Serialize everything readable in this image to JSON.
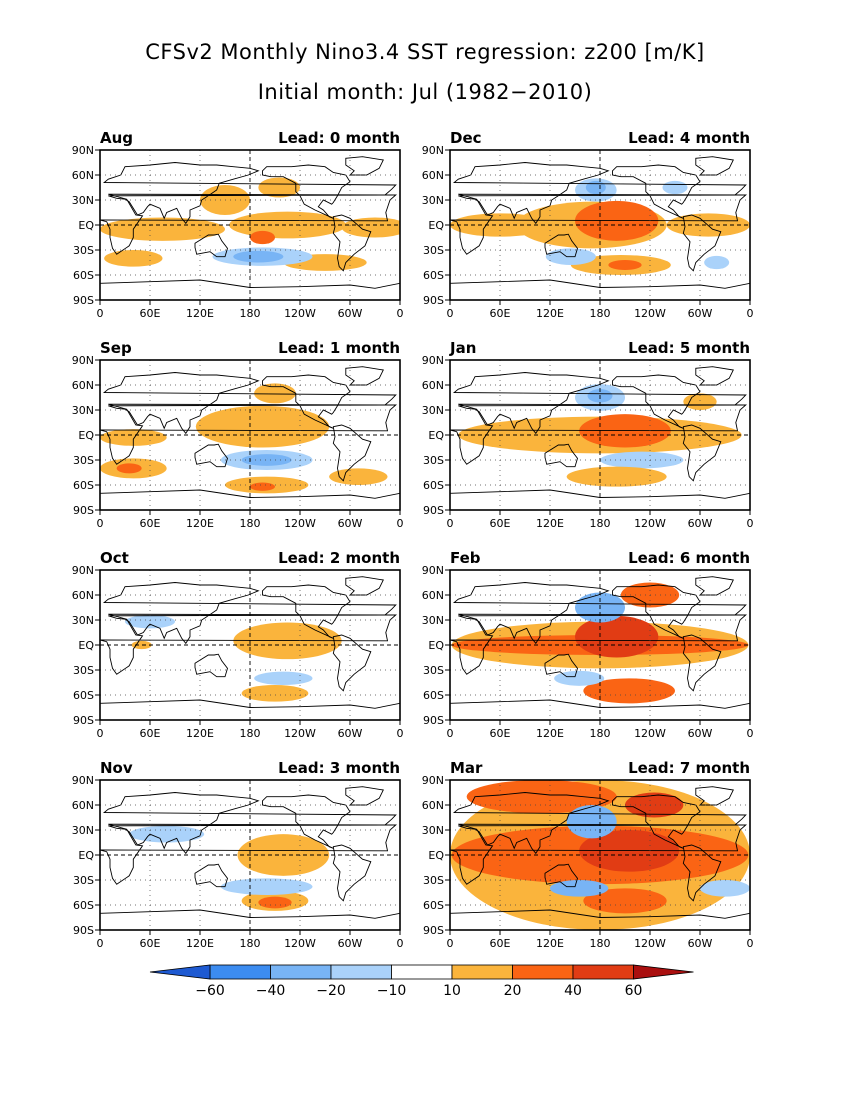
{
  "title": "CFSv2 Monthly Nino3.4 SST regression: z200 [m/K]",
  "subtitle": "Initial month: Jul (1982−2010)",
  "colors": {
    "neg60": "#1e5ad2",
    "neg40": "#3c8cf0",
    "neg20": "#78b4f5",
    "neg10": "#aad2fa",
    "pos10": "#fab43c",
    "pos20": "#fa6414",
    "pos40": "#e13c14",
    "pos60": "#aa0f0f"
  },
  "chart_data": {
    "type": "heatmap",
    "x_ticks": [
      "0",
      "60E",
      "120E",
      "180",
      "120W",
      "60W",
      "0"
    ],
    "y_ticks": [
      "90N",
      "60N",
      "30N",
      "EQ",
      "30S",
      "60S",
      "90S"
    ],
    "xlim": [
      0,
      360
    ],
    "ylim": [
      -90,
      90
    ],
    "colorbar": {
      "levels": [
        "−60",
        "−40",
        "−20",
        "−10",
        "10",
        "20",
        "40",
        "60"
      ],
      "extend": "both"
    },
    "panels": [
      {
        "month": "Aug",
        "lead": "Lead: 0 month",
        "blobs": [
          {
            "lon": 75,
            "lat": -5,
            "rx": 75,
            "ry": 14,
            "lvl": 10
          },
          {
            "lon": 225,
            "lat": 0,
            "rx": 70,
            "ry": 16,
            "lvl": 10
          },
          {
            "lon": 330,
            "lat": -3,
            "rx": 40,
            "ry": 12,
            "lvl": 10
          },
          {
            "lon": 150,
            "lat": 30,
            "rx": 30,
            "ry": 18,
            "lvl": 10
          },
          {
            "lon": 215,
            "lat": 45,
            "rx": 25,
            "ry": 12,
            "lvl": 10
          },
          {
            "lon": 195,
            "lat": -15,
            "rx": 15,
            "ry": 8,
            "lvl": 20
          },
          {
            "lon": 40,
            "lat": -40,
            "rx": 35,
            "ry": 10,
            "lvl": 10
          },
          {
            "lon": 270,
            "lat": -45,
            "rx": 50,
            "ry": 10,
            "lvl": 10
          },
          {
            "lon": 195,
            "lat": -38,
            "rx": 60,
            "ry": 11,
            "lvl": -10
          },
          {
            "lon": 190,
            "lat": -38,
            "rx": 30,
            "ry": 7,
            "lvl": -20
          }
        ]
      },
      {
        "month": "Dec",
        "lead": "Lead: 4 month",
        "blobs": [
          {
            "lon": 170,
            "lat": 0,
            "rx": 90,
            "ry": 28,
            "lvl": 10
          },
          {
            "lon": 60,
            "lat": 0,
            "rx": 60,
            "ry": 14,
            "lvl": 10
          },
          {
            "lon": 310,
            "lat": 0,
            "rx": 50,
            "ry": 14,
            "lvl": 10
          },
          {
            "lon": 200,
            "lat": 5,
            "rx": 50,
            "ry": 24,
            "lvl": 20
          },
          {
            "lon": 205,
            "lat": -48,
            "rx": 60,
            "ry": 12,
            "lvl": 10
          },
          {
            "lon": 210,
            "lat": -48,
            "rx": 20,
            "ry": 6,
            "lvl": 20
          },
          {
            "lon": 175,
            "lat": 42,
            "rx": 25,
            "ry": 14,
            "lvl": -10
          },
          {
            "lon": 175,
            "lat": 45,
            "rx": 12,
            "ry": 8,
            "lvl": -20
          },
          {
            "lon": 145,
            "lat": -38,
            "rx": 30,
            "ry": 10,
            "lvl": -10
          },
          {
            "lon": 320,
            "lat": -45,
            "rx": 15,
            "ry": 8,
            "lvl": -10
          },
          {
            "lon": 270,
            "lat": 45,
            "rx": 15,
            "ry": 8,
            "lvl": -10
          }
        ]
      },
      {
        "month": "Sep",
        "lead": "Lead: 1 month",
        "blobs": [
          {
            "lon": 195,
            "lat": 10,
            "rx": 80,
            "ry": 25,
            "lvl": 10
          },
          {
            "lon": 40,
            "lat": -3,
            "rx": 40,
            "ry": 10,
            "lvl": 10
          },
          {
            "lon": 210,
            "lat": 50,
            "rx": 25,
            "ry": 12,
            "lvl": 10
          },
          {
            "lon": 40,
            "lat": -40,
            "rx": 40,
            "ry": 12,
            "lvl": 10
          },
          {
            "lon": 35,
            "lat": -40,
            "rx": 15,
            "ry": 6,
            "lvl": 20
          },
          {
            "lon": 200,
            "lat": -60,
            "rx": 50,
            "ry": 10,
            "lvl": 10
          },
          {
            "lon": 195,
            "lat": -62,
            "rx": 15,
            "ry": 5,
            "lvl": 20
          },
          {
            "lon": 200,
            "lat": -30,
            "rx": 55,
            "ry": 12,
            "lvl": -10
          },
          {
            "lon": 200,
            "lat": -30,
            "rx": 30,
            "ry": 7,
            "lvl": -20
          },
          {
            "lon": 310,
            "lat": -50,
            "rx": 35,
            "ry": 10,
            "lvl": 10
          }
        ]
      },
      {
        "month": "Jan",
        "lead": "Lead: 5 month",
        "blobs": [
          {
            "lon": 180,
            "lat": 0,
            "rx": 170,
            "ry": 22,
            "lvl": 10
          },
          {
            "lon": 210,
            "lat": 5,
            "rx": 55,
            "ry": 20,
            "lvl": 20
          },
          {
            "lon": 180,
            "lat": 45,
            "rx": 30,
            "ry": 16,
            "lvl": -10
          },
          {
            "lon": 180,
            "lat": 47,
            "rx": 15,
            "ry": 8,
            "lvl": -20
          },
          {
            "lon": 230,
            "lat": -30,
            "rx": 50,
            "ry": 10,
            "lvl": -10
          },
          {
            "lon": 200,
            "lat": -50,
            "rx": 60,
            "ry": 12,
            "lvl": 10
          },
          {
            "lon": 300,
            "lat": 40,
            "rx": 20,
            "ry": 10,
            "lvl": 10
          }
        ]
      },
      {
        "month": "Oct",
        "lead": "Lead: 2 month",
        "blobs": [
          {
            "lon": 225,
            "lat": 5,
            "rx": 65,
            "ry": 22,
            "lvl": 10
          },
          {
            "lon": 210,
            "lat": -58,
            "rx": 40,
            "ry": 10,
            "lvl": 10
          },
          {
            "lon": 220,
            "lat": -40,
            "rx": 35,
            "ry": 8,
            "lvl": -10
          },
          {
            "lon": 60,
            "lat": 28,
            "rx": 30,
            "ry": 8,
            "lvl": -10
          },
          {
            "lon": 50,
            "lat": 0,
            "rx": 12,
            "ry": 5,
            "lvl": 10
          }
        ]
      },
      {
        "month": "Feb",
        "lead": "Lead: 6 month",
        "blobs": [
          {
            "lon": 180,
            "lat": 0,
            "rx": 178,
            "ry": 28,
            "lvl": 10
          },
          {
            "lon": 180,
            "lat": 0,
            "rx": 178,
            "ry": 12,
            "lvl": 20
          },
          {
            "lon": 200,
            "lat": 10,
            "rx": 50,
            "ry": 25,
            "lvl": 40
          },
          {
            "lon": 180,
            "lat": 45,
            "rx": 30,
            "ry": 18,
            "lvl": -20
          },
          {
            "lon": 240,
            "lat": 60,
            "rx": 35,
            "ry": 15,
            "lvl": 20
          },
          {
            "lon": 215,
            "lat": -55,
            "rx": 55,
            "ry": 15,
            "lvl": 20
          },
          {
            "lon": 155,
            "lat": -40,
            "rx": 30,
            "ry": 9,
            "lvl": -10
          }
        ]
      },
      {
        "month": "Nov",
        "lead": "Lead: 3 month",
        "blobs": [
          {
            "lon": 220,
            "lat": 0,
            "rx": 55,
            "ry": 25,
            "lvl": 10
          },
          {
            "lon": 210,
            "lat": -55,
            "rx": 40,
            "ry": 12,
            "lvl": 10
          },
          {
            "lon": 210,
            "lat": -57,
            "rx": 20,
            "ry": 7,
            "lvl": 20
          },
          {
            "lon": 200,
            "lat": -38,
            "rx": 55,
            "ry": 10,
            "lvl": -10
          },
          {
            "lon": 80,
            "lat": 25,
            "rx": 45,
            "ry": 10,
            "lvl": -10
          }
        ]
      },
      {
        "month": "Mar",
        "lead": "Lead: 7 month",
        "blobs": [
          {
            "lon": 180,
            "lat": 0,
            "rx": 180,
            "ry": 90,
            "lvl": 10
          },
          {
            "lon": 180,
            "lat": 0,
            "rx": 178,
            "ry": 35,
            "lvl": 20
          },
          {
            "lon": 215,
            "lat": 5,
            "rx": 60,
            "ry": 25,
            "lvl": 40
          },
          {
            "lon": 110,
            "lat": 70,
            "rx": 90,
            "ry": 20,
            "lvl": 20
          },
          {
            "lon": 170,
            "lat": 40,
            "rx": 30,
            "ry": 20,
            "lvl": -20
          },
          {
            "lon": 245,
            "lat": 60,
            "rx": 35,
            "ry": 15,
            "lvl": 40
          },
          {
            "lon": 210,
            "lat": -55,
            "rx": 50,
            "ry": 15,
            "lvl": 20
          },
          {
            "lon": 155,
            "lat": -40,
            "rx": 35,
            "ry": 10,
            "lvl": -20
          },
          {
            "lon": 330,
            "lat": -40,
            "rx": 30,
            "ry": 10,
            "lvl": -10
          }
        ]
      }
    ]
  }
}
